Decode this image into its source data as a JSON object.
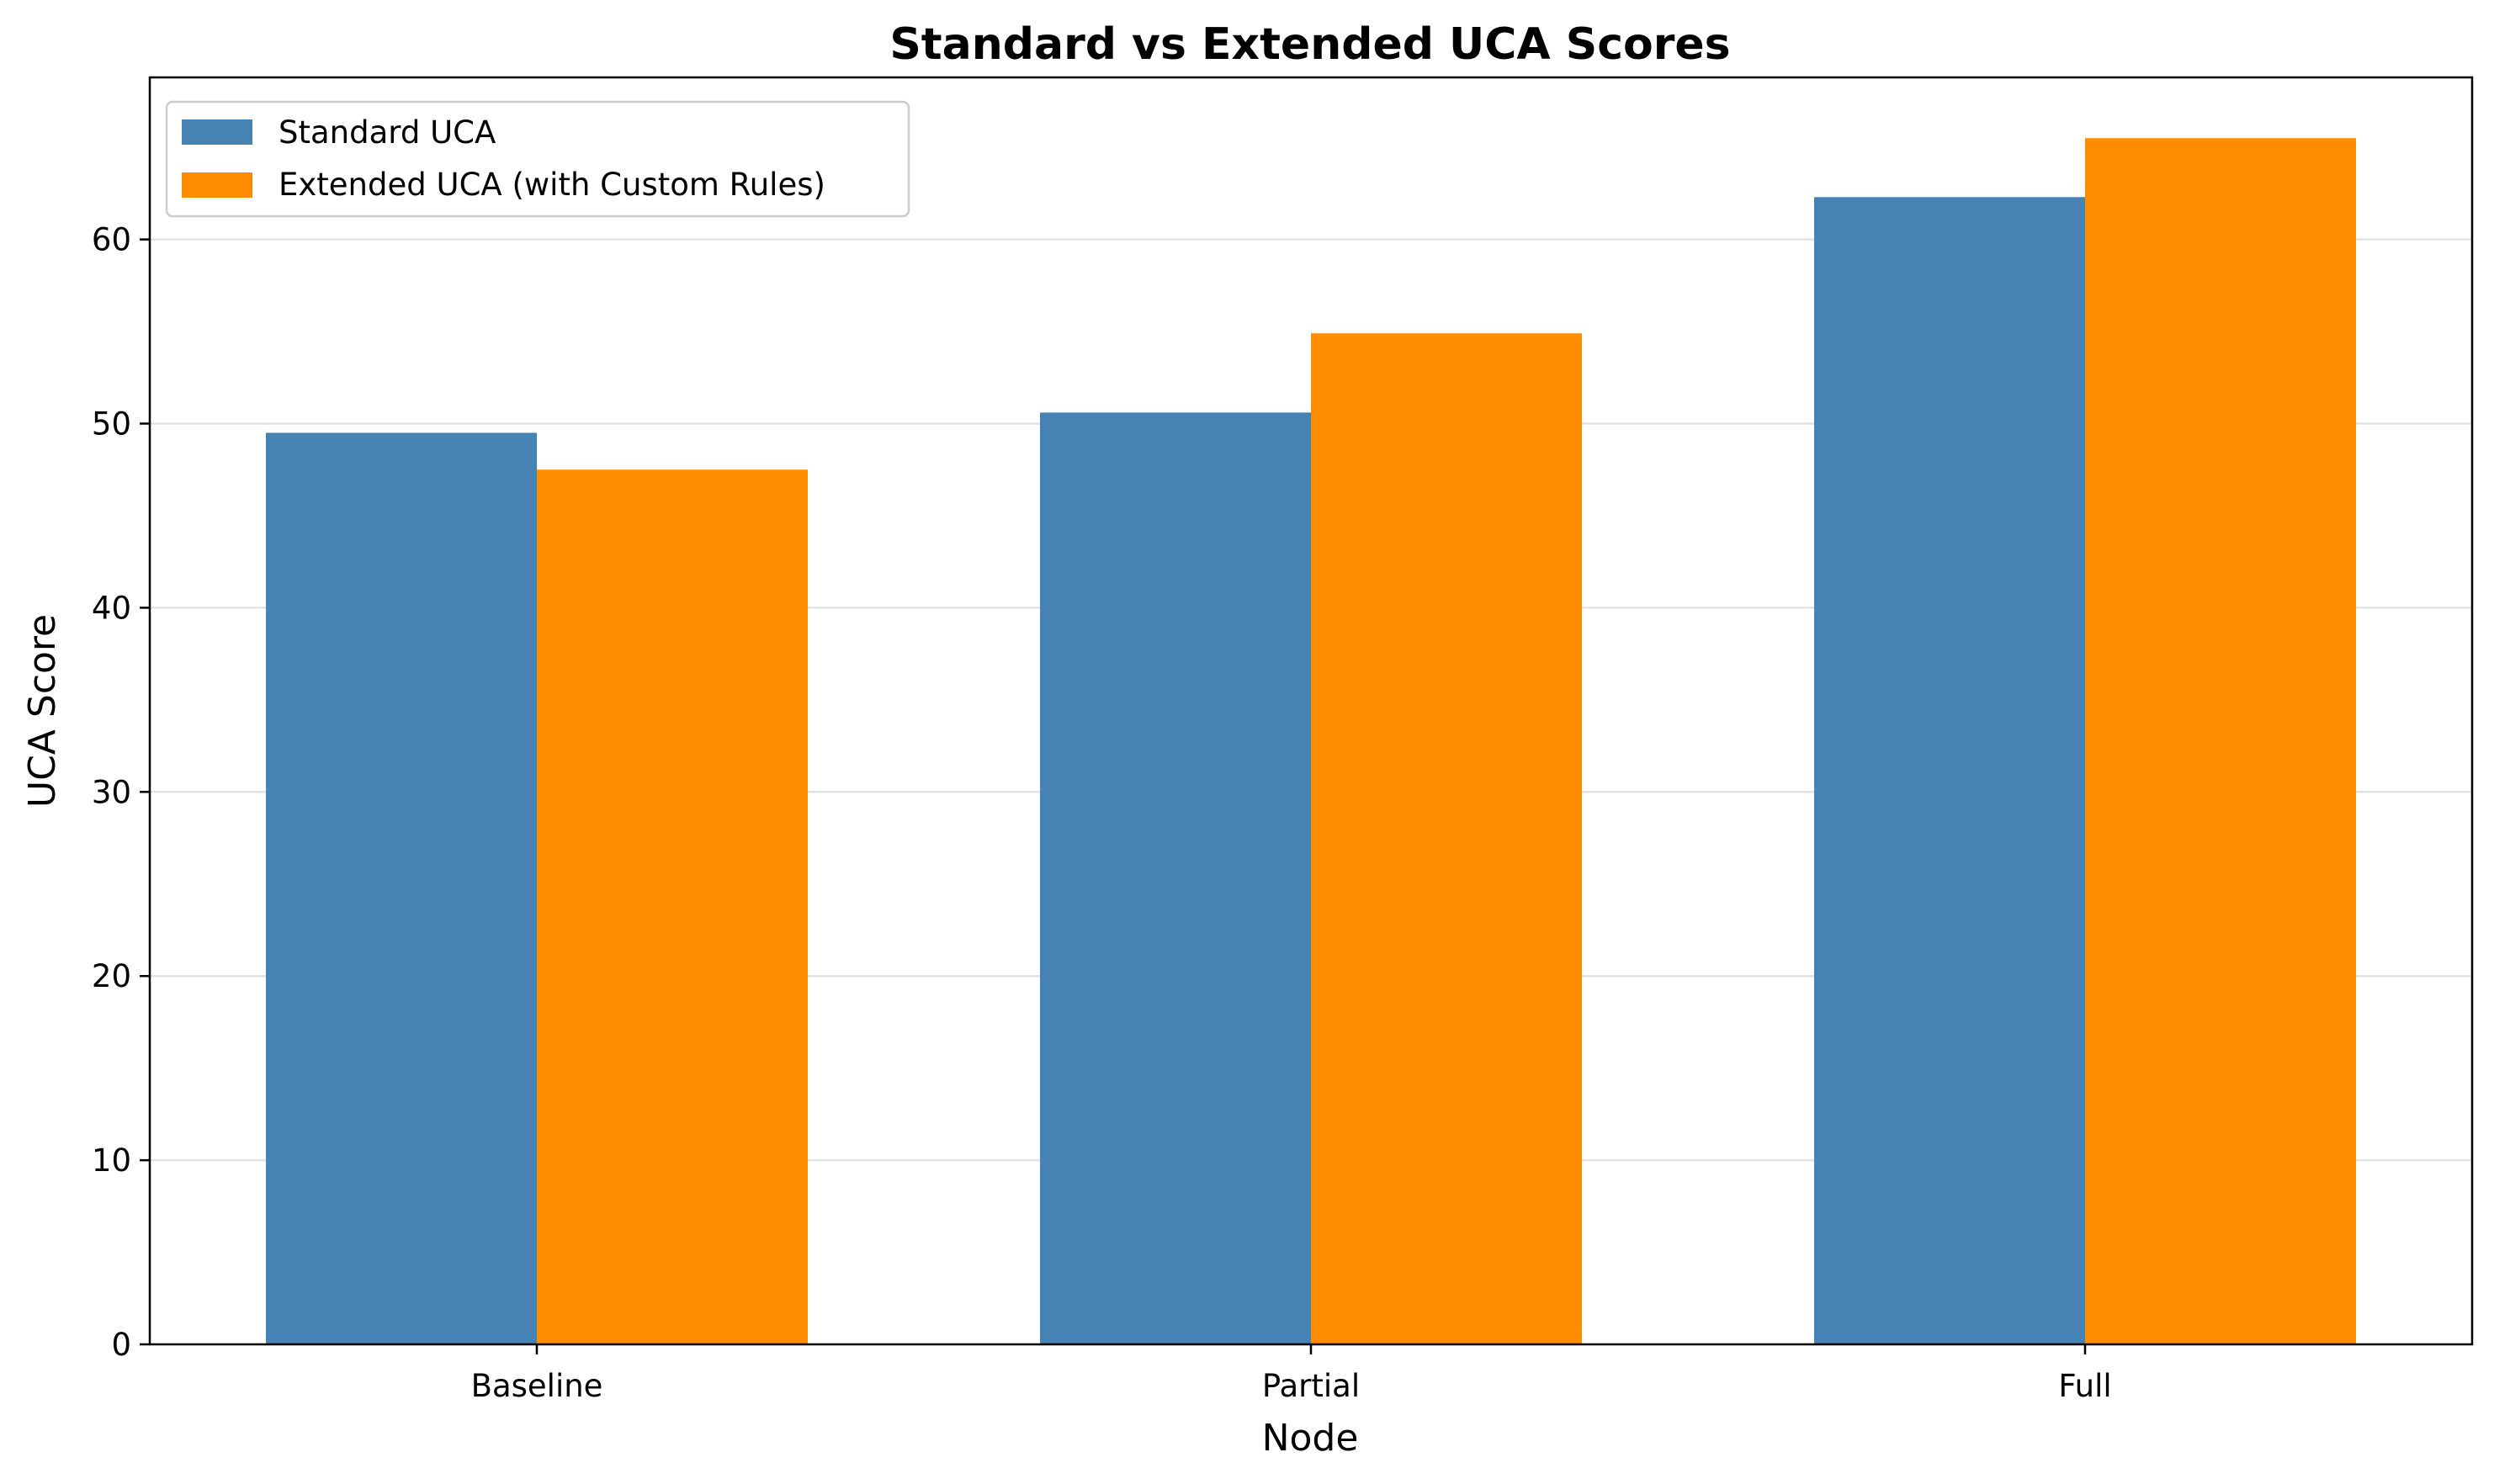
{
  "chart_data": {
    "type": "bar",
    "title": "Standard vs Extended UCA Scores",
    "xlabel": "Node",
    "ylabel": "UCA Score",
    "categories": [
      "Baseline",
      "Partial",
      "Full"
    ],
    "series": [
      {
        "name": "Standard UCA",
        "color": "#4682b4",
        "values": [
          49.5,
          50.6,
          62.3
        ]
      },
      {
        "name": "Extended UCA (with Custom Rules)",
        "color": "#ff8c00",
        "values": [
          47.5,
          54.9,
          65.5
        ]
      }
    ],
    "ylim": [
      0,
      68.8
    ],
    "yticks": [
      0,
      10,
      20,
      30,
      40,
      50,
      60
    ],
    "grid": "y-axis",
    "legend_position": "top-left"
  }
}
